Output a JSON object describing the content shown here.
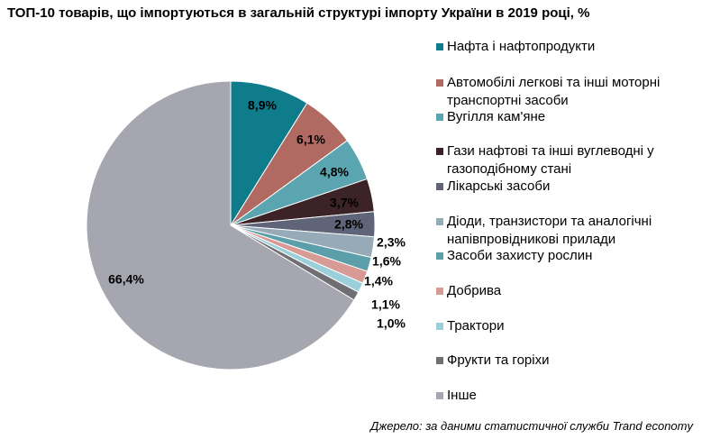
{
  "chart_data": {
    "type": "pie",
    "title": "ТОП-10 товарів, що імпортуються в загальній структурі імпорту України в 2019 році, %",
    "categories": [
      "Нафта і нафтопродукти",
      "Автомобілі легкові та інші моторні транспортні засоби",
      "Вугілля кам'яне",
      "Гази нафтові та інші вуглеводні у газоподібному стані",
      "Лікарські засоби",
      "Діоди, транзистори та аналогічні напівпровідникові прилади",
      "Засоби захисту рослин",
      "Добрива",
      "Трактори",
      "Фрукти та горіхи",
      "Інше"
    ],
    "values": [
      8.9,
      6.1,
      4.8,
      3.7,
      2.8,
      2.3,
      1.6,
      1.4,
      1.1,
      1.0,
      66.4
    ],
    "value_labels": [
      "8,9%",
      "6,1%",
      "4,8%",
      "3,7%",
      "2,8%",
      "2,3%",
      "1,6%",
      "1,4%",
      "1,1%",
      "1,0%",
      "66,4%"
    ],
    "colors": [
      "#0e7c8a",
      "#b06a62",
      "#5ba5b0",
      "#3b2327",
      "#5f6478",
      "#97aab8",
      "#5c9ea9",
      "#d89a94",
      "#9bd0da",
      "#6e6e73",
      "#a6a6b0"
    ],
    "legend_position": "right"
  },
  "source_note": "Джерело: за даними статистичної служби Trand economy"
}
